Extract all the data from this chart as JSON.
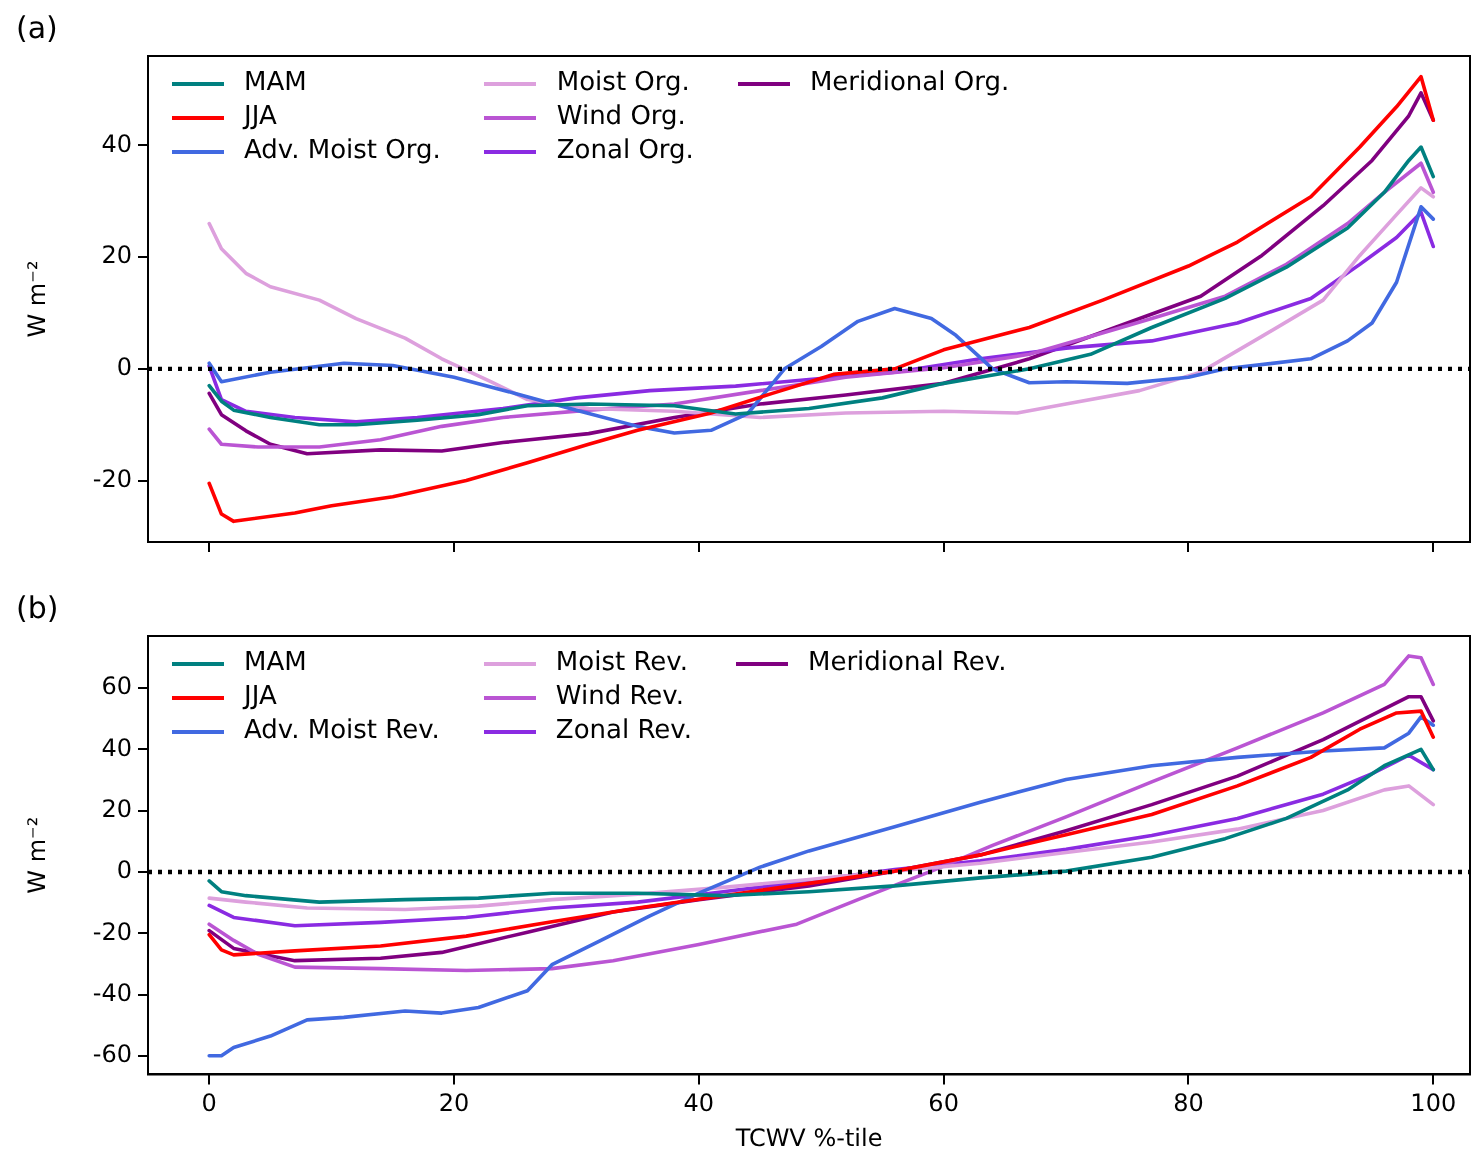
{
  "chart_data": [
    {
      "type": "line",
      "title": "(a)",
      "ylabel": "W m⁻²",
      "xlim": [
        -5,
        103
      ],
      "xticks": [
        0,
        20,
        40,
        60,
        80,
        100
      ],
      "ylim": [
        -31,
        56
      ],
      "yticks": [
        -20,
        0,
        20,
        40
      ],
      "tick_labels": "y",
      "grid": false,
      "legend": "top left",
      "marker": "none",
      "line_style": "solid",
      "ref_lines": [
        {
          "axis": "y",
          "value": 0,
          "color": "#000000",
          "line_style": "dotted"
        }
      ],
      "series": [
        {
          "name": "MAM",
          "color": "#008080",
          "x": [
            0,
            1,
            2,
            5,
            9,
            12,
            17,
            22,
            26,
            31,
            38,
            43,
            49,
            55,
            60,
            67,
            72,
            77,
            83,
            88,
            93,
            96,
            98,
            99,
            100
          ],
          "values": [
            -3,
            -5.8,
            -7.4,
            -8.7,
            -10,
            -10,
            -9.2,
            -8.2,
            -6.6,
            -6.3,
            -6.6,
            -8.1,
            -7.1,
            -5.2,
            -2.6,
            0,
            2.6,
            7.4,
            12.6,
            18.2,
            25.2,
            31.6,
            37.3,
            39.7,
            34.4
          ]
        },
        {
          "name": "JJA",
          "color": "#ff0000",
          "x": [
            0,
            1,
            2,
            7,
            10,
            15,
            21,
            26,
            31,
            35,
            41,
            46,
            51,
            56,
            60,
            67,
            73,
            80,
            84,
            90,
            94,
            97,
            99,
            100
          ],
          "values": [
            -20.5,
            -26,
            -27.3,
            -25.8,
            -24.5,
            -22.9,
            -20,
            -16.8,
            -13.5,
            -11,
            -7.9,
            -4.4,
            -1,
            0,
            3.4,
            7.4,
            12.3,
            18.4,
            22.7,
            30.8,
            39.7,
            46.9,
            52.3,
            44.5
          ]
        },
        {
          "name": "Adv. Moist Org.",
          "color": "#4169e1",
          "x": [
            0,
            1,
            5,
            11,
            15,
            20,
            25,
            30,
            35,
            38,
            41,
            44,
            47,
            50,
            53,
            56,
            59,
            61,
            64,
            67,
            70,
            75,
            80,
            83,
            90,
            93,
            95,
            97,
            99,
            100
          ],
          "values": [
            1,
            -2.3,
            -0.6,
            1,
            0.6,
            -1.5,
            -4.4,
            -7.4,
            -10.3,
            -11.5,
            -11,
            -8,
            0,
            4,
            8.5,
            10.8,
            9,
            6,
            0,
            -2.5,
            -2.3,
            -2.6,
            -1.5,
            0,
            1.8,
            5,
            8.2,
            15.5,
            29,
            26.8
          ]
        },
        {
          "name": "Moist Org.",
          "color": "#dda0dd",
          "x": [
            0,
            1,
            3,
            5,
            9,
            12,
            16,
            19,
            23,
            26,
            31,
            38,
            45,
            52,
            60,
            66,
            70,
            76,
            81,
            86,
            91,
            94,
            97,
            99,
            100
          ],
          "values": [
            26,
            21.5,
            17.1,
            14.7,
            12.3,
            9,
            5.5,
            1.8,
            -2.3,
            -5.5,
            -7.1,
            -7.6,
            -8.7,
            -7.9,
            -7.6,
            -7.9,
            -6.3,
            -3.9,
            -0.6,
            5.8,
            12.3,
            20.3,
            27.6,
            32.4,
            30.8
          ]
        },
        {
          "name": "Wind Org.",
          "color": "#ba55d3",
          "x": [
            0,
            1,
            4,
            9,
            14,
            19,
            24,
            31,
            38,
            45,
            52,
            60,
            67,
            72,
            77,
            83,
            88,
            93,
            96,
            99,
            100
          ],
          "values": [
            -10.8,
            -13.5,
            -14,
            -14,
            -12.7,
            -10.3,
            -8.7,
            -7.4,
            -6.3,
            -3.9,
            -1.5,
            0.2,
            2.6,
            5.8,
            9,
            13,
            18.7,
            26,
            31.6,
            36.8,
            31.6
          ]
        },
        {
          "name": "Zonal Org.",
          "color": "#8a2be2",
          "x": [
            0,
            1,
            3,
            7,
            12,
            17,
            24,
            30,
            36,
            43,
            49,
            56,
            63,
            70,
            77,
            84,
            90,
            94,
            97,
            99,
            100
          ],
          "values": [
            0.5,
            -5.5,
            -7.6,
            -8.7,
            -9.5,
            -8.7,
            -7.1,
            -5.2,
            -3.9,
            -3.1,
            -1.9,
            -0.6,
            1.8,
            3.7,
            5,
            8.2,
            12.6,
            18.7,
            23.5,
            28,
            21.9
          ]
        },
        {
          "name": "Meridional Org.",
          "color": "#800080",
          "x": [
            0,
            1,
            3,
            5,
            8,
            14,
            19,
            24,
            31,
            38,
            45,
            52,
            60,
            67,
            74,
            81,
            86,
            91,
            95,
            98,
            99,
            100
          ],
          "values": [
            -4.4,
            -8.2,
            -11.1,
            -13.5,
            -15.2,
            -14.5,
            -14.7,
            -13.2,
            -11.6,
            -8.7,
            -6.3,
            -4.7,
            -2.6,
            1.8,
            7.4,
            13,
            20.3,
            29.2,
            37.3,
            45.3,
            49.4,
            44.5
          ]
        }
      ]
    },
    {
      "type": "line",
      "title": "(b)",
      "xlabel": "TCWV %-tile",
      "ylabel": "W m⁻²",
      "xlim": [
        -5,
        103
      ],
      "xticks": [
        0,
        20,
        40,
        60,
        80,
        100
      ],
      "ylim": [
        -66,
        77
      ],
      "yticks": [
        -60,
        -40,
        -20,
        0,
        20,
        40,
        60
      ],
      "grid": false,
      "legend": "top left",
      "marker": "none",
      "line_style": "solid",
      "ref_lines": [
        {
          "axis": "y",
          "value": 0,
          "color": "#000000",
          "line_style": "dotted"
        }
      ],
      "series": [
        {
          "name": "MAM",
          "color": "#008080",
          "x": [
            0,
            1,
            3,
            9,
            16,
            22,
            28,
            35,
            42,
            49,
            56,
            63,
            70,
            77,
            83,
            88,
            93,
            96,
            99,
            100
          ],
          "values": [
            -2.9,
            -6.4,
            -7.7,
            -9.8,
            -9,
            -8.5,
            -6.9,
            -6.9,
            -7.7,
            -6.4,
            -4.5,
            -1.9,
            0.3,
            4.8,
            10.9,
            17.5,
            26.8,
            34.7,
            40,
            33.4
          ]
        },
        {
          "name": "JJA",
          "color": "#ff0000",
          "x": [
            0,
            1,
            2,
            7,
            14,
            21,
            28,
            35,
            42,
            49,
            56,
            63,
            70,
            77,
            84,
            90,
            94,
            97,
            99,
            100
          ],
          "values": [
            -20.4,
            -25.4,
            -27,
            -25.7,
            -24.1,
            -20.9,
            -16.2,
            -11.7,
            -7.7,
            -3.7,
            0.3,
            5.6,
            12.2,
            18.8,
            28.1,
            37.4,
            46.6,
            51.9,
            52.5,
            44
          ]
        },
        {
          "name": "Adv. Moist Rev.",
          "color": "#4169e1",
          "x": [
            0,
            1,
            2,
            5,
            8,
            11,
            16,
            19,
            22,
            26,
            28,
            32,
            36,
            40,
            45,
            49,
            56,
            63,
            70,
            77,
            84,
            91,
            96,
            98,
            99,
            100
          ],
          "values": [
            -59.9,
            -59.9,
            -57.2,
            -53.5,
            -48.2,
            -47.4,
            -45.3,
            -46,
            -44.2,
            -38.7,
            -30.2,
            -22.3,
            -14.3,
            -6.9,
            1.6,
            6.9,
            14.8,
            22.8,
            30.2,
            34.7,
            37.4,
            39.5,
            40.5,
            45.3,
            50.6,
            47.9
          ]
        },
        {
          "name": "Moist Rev.",
          "color": "#dda0dd",
          "x": [
            0,
            3,
            8,
            16,
            22,
            28,
            35,
            42,
            49,
            56,
            63,
            70,
            77,
            84,
            91,
            96,
            98,
            100
          ],
          "values": [
            -8.5,
            -9.8,
            -11.7,
            -12.2,
            -11.1,
            -9,
            -7.2,
            -5,
            -2.4,
            0.3,
            2.9,
            6.4,
            9.8,
            14,
            20.1,
            26.8,
            28.1,
            22
          ]
        },
        {
          "name": "Wind Rev.",
          "color": "#ba55d3",
          "x": [
            0,
            2,
            4,
            7,
            14,
            21,
            28,
            33,
            40,
            48,
            53,
            59,
            64,
            70,
            77,
            84,
            91,
            96,
            98,
            99,
            100
          ],
          "values": [
            -17,
            -22.3,
            -26.8,
            -31,
            -31.5,
            -32.1,
            -31.5,
            -28.9,
            -23.6,
            -17,
            -9,
            0.3,
            8.7,
            18,
            29.4,
            40.5,
            51.9,
            61.2,
            70.5,
            69.9,
            61.2
          ]
        },
        {
          "name": "Zonal Rev.",
          "color": "#8a2be2",
          "x": [
            0,
            2,
            7,
            14,
            21,
            28,
            35,
            42,
            49,
            56,
            63,
            70,
            77,
            84,
            91,
            95,
            98,
            100
          ],
          "values": [
            -10.9,
            -14.8,
            -17.5,
            -16.4,
            -14.8,
            -11.7,
            -9.8,
            -6.4,
            -2.9,
            0.8,
            3.7,
            7.4,
            11.9,
            17.5,
            25.4,
            32.1,
            38.1,
            33.4
          ]
        },
        {
          "name": "Meridional Rev.",
          "color": "#800080",
          "x": [
            0,
            2,
            7,
            14,
            19,
            26,
            33,
            40,
            49,
            56,
            63,
            70,
            77,
            84,
            91,
            96,
            98,
            99,
            100
          ],
          "values": [
            -19.1,
            -24.9,
            -28.9,
            -28.1,
            -26.2,
            -19.6,
            -13,
            -9,
            -4.5,
            0.3,
            5.6,
            13.5,
            22,
            31.3,
            43.2,
            53.2,
            57.2,
            57.2,
            49.3
          ]
        }
      ]
    }
  ]
}
